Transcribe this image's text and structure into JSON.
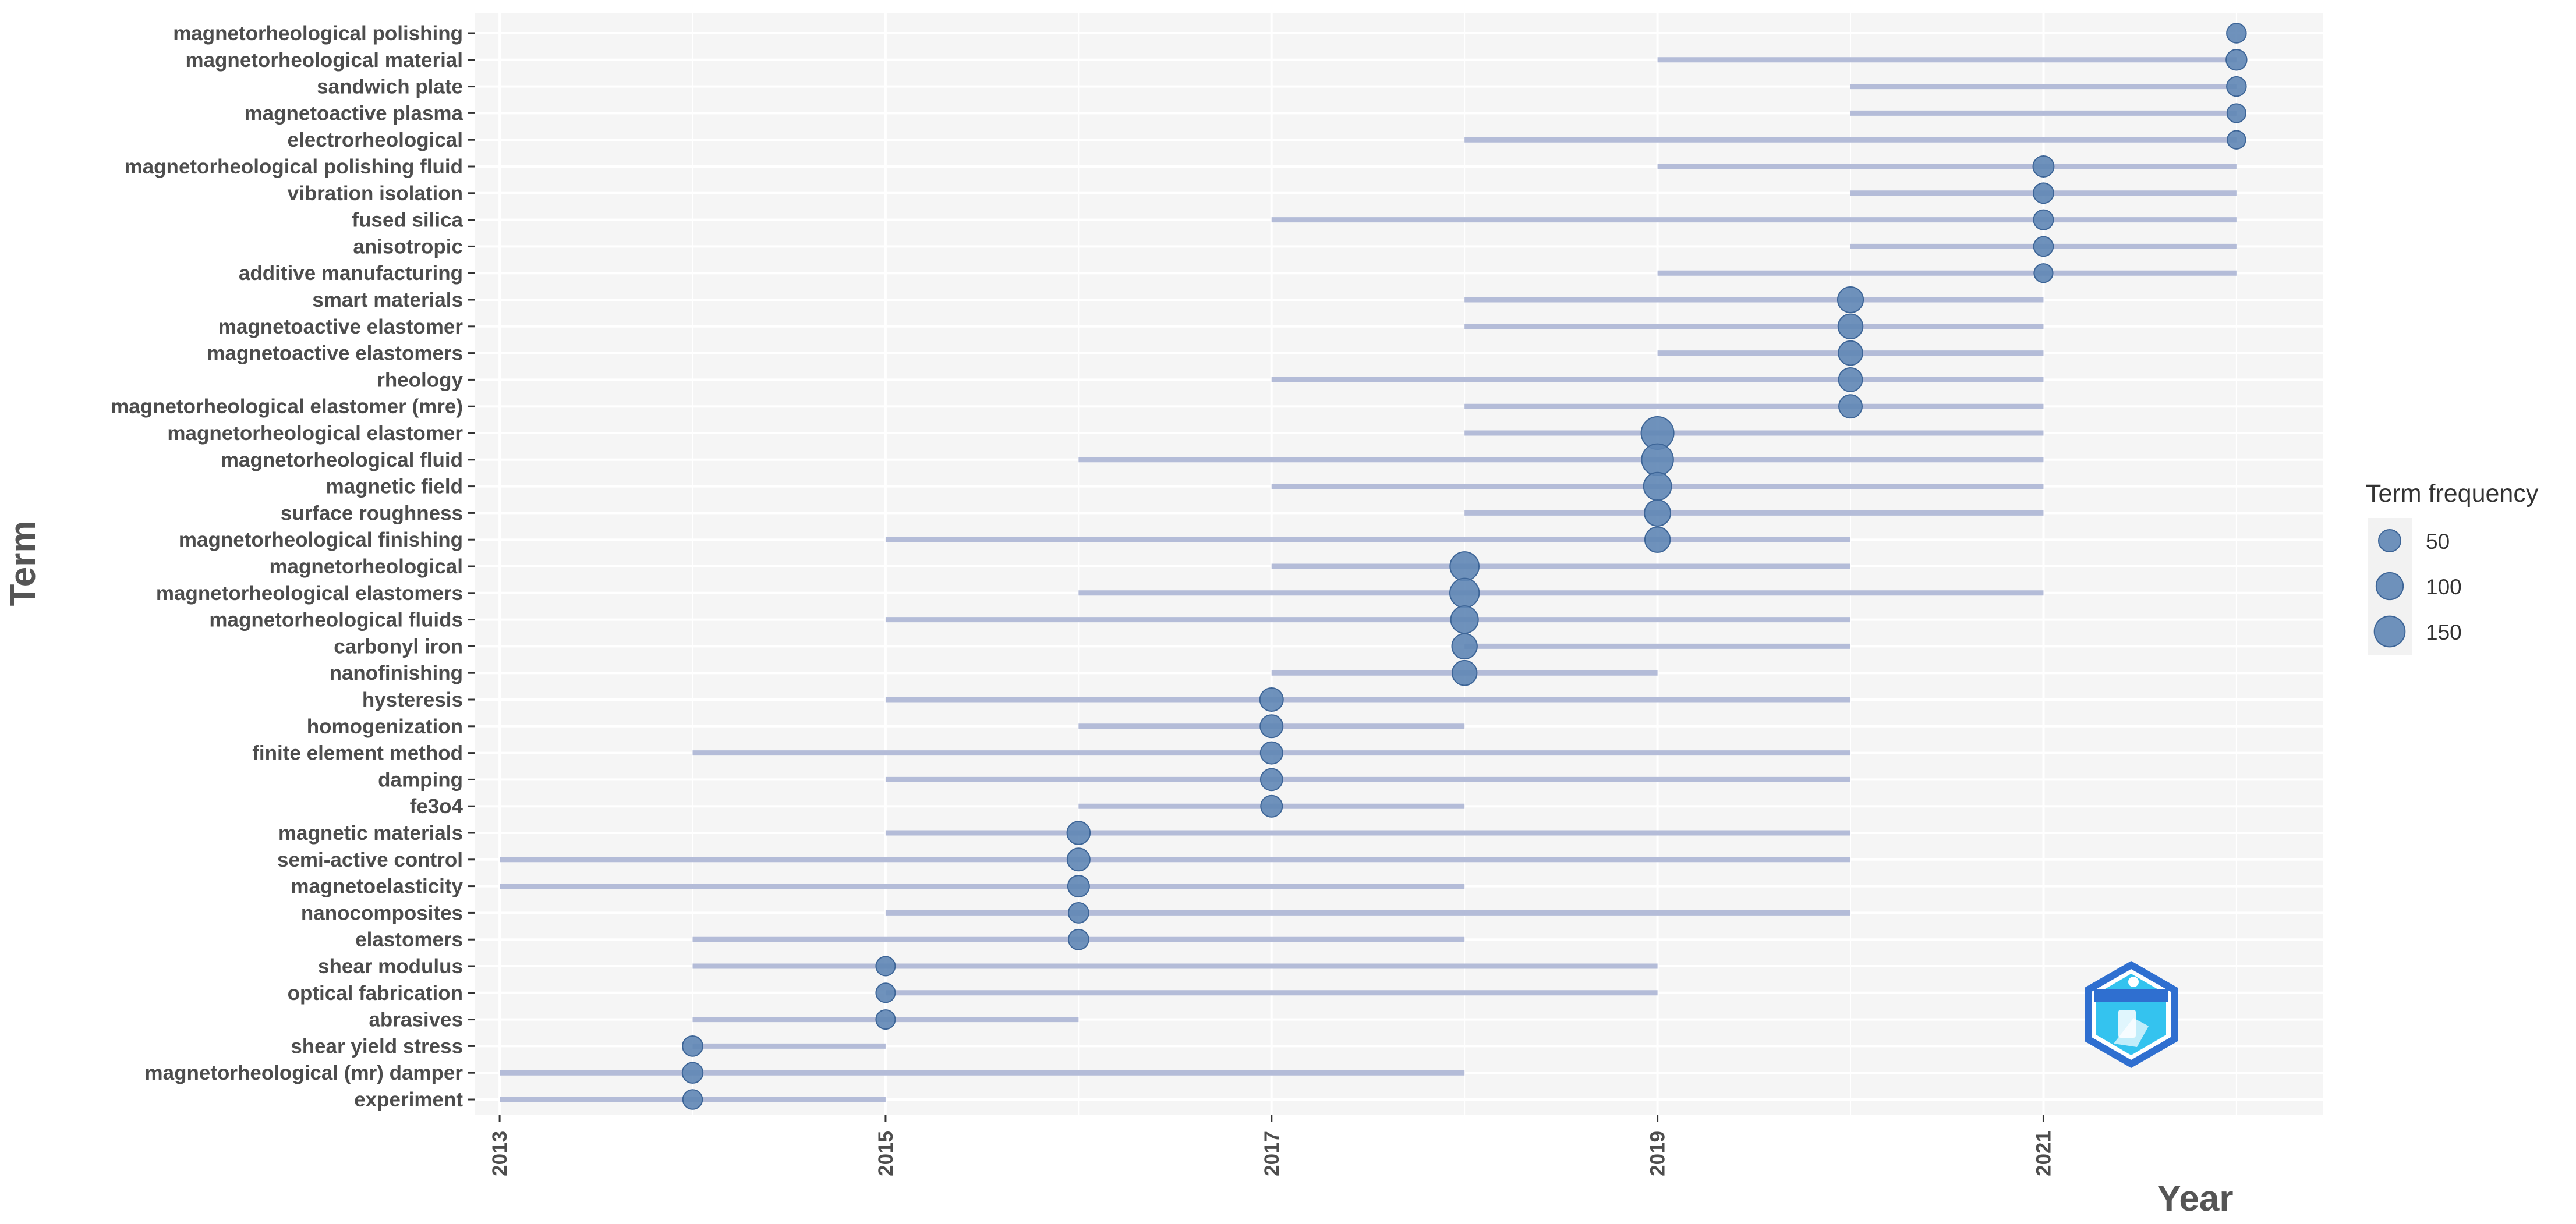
{
  "chart_data": {
    "type": "scatter",
    "title": "",
    "xlabel": "Year",
    "ylabel": "Term",
    "xlim": [
      2012.87,
      2022.45
    ],
    "x_ticks": [
      "2013",
      "2015",
      "2017",
      "2019",
      "2021"
    ],
    "legend": {
      "title": "Term frequency",
      "placement": "right",
      "items": [
        {
          "label": "50",
          "value": 50
        },
        {
          "label": "100",
          "value": 100
        },
        {
          "label": "150",
          "value": 150
        }
      ]
    },
    "terms": [
      {
        "term": "magnetorheological polishing",
        "start": 2022,
        "end": 2022,
        "year": 2022,
        "freq": 30
      },
      {
        "term": "magnetorheological material",
        "start": 2019,
        "end": 2022,
        "year": 2022,
        "freq": 38
      },
      {
        "term": "sandwich plate",
        "start": 2020,
        "end": 2022,
        "year": 2022,
        "freq": 30
      },
      {
        "term": "magnetoactive plasma",
        "start": 2020,
        "end": 2022,
        "year": 2022,
        "freq": 25
      },
      {
        "term": "electrorheological",
        "start": 2018,
        "end": 2022,
        "year": 2022,
        "freq": 22
      },
      {
        "term": "magnetorheological polishing fluid",
        "start": 2019,
        "end": 2022,
        "year": 2021,
        "freq": 40
      },
      {
        "term": "vibration isolation",
        "start": 2020,
        "end": 2022,
        "year": 2021,
        "freq": 35
      },
      {
        "term": "fused silica",
        "start": 2017,
        "end": 2022,
        "year": 2021,
        "freq": 32
      },
      {
        "term": "anisotropic",
        "start": 2020,
        "end": 2022,
        "year": 2021,
        "freq": 30
      },
      {
        "term": "additive manufacturing",
        "start": 2019,
        "end": 2022,
        "year": 2021,
        "freq": 25
      },
      {
        "term": "smart materials",
        "start": 2018,
        "end": 2021,
        "year": 2020,
        "freq": 85
      },
      {
        "term": "magnetoactive elastomer",
        "start": 2018,
        "end": 2021,
        "year": 2020,
        "freq": 75
      },
      {
        "term": "magnetoactive elastomers",
        "start": 2019,
        "end": 2021,
        "year": 2020,
        "freq": 70
      },
      {
        "term": "rheology",
        "start": 2017,
        "end": 2021,
        "year": 2020,
        "freq": 65
      },
      {
        "term": "magnetorheological elastomer (mre)",
        "start": 2018,
        "end": 2021,
        "year": 2020,
        "freq": 60
      },
      {
        "term": "magnetorheological elastomer",
        "start": 2018,
        "end": 2021,
        "year": 2019,
        "freq": 180
      },
      {
        "term": "magnetorheological fluid",
        "start": 2016,
        "end": 2021,
        "year": 2019,
        "freq": 165
      },
      {
        "term": "magnetic field",
        "start": 2017,
        "end": 2021,
        "year": 2019,
        "freq": 110
      },
      {
        "term": "surface roughness",
        "start": 2018,
        "end": 2021,
        "year": 2019,
        "freq": 90
      },
      {
        "term": "magnetorheological finishing",
        "start": 2015,
        "end": 2020,
        "year": 2019,
        "freq": 80
      },
      {
        "term": "magnetorheological",
        "start": 2017,
        "end": 2020,
        "year": 2018,
        "freq": 125
      },
      {
        "term": "magnetorheological elastomers",
        "start": 2016,
        "end": 2021,
        "year": 2018,
        "freq": 130
      },
      {
        "term": "magnetorheological fluids",
        "start": 2015,
        "end": 2020,
        "year": 2018,
        "freq": 105
      },
      {
        "term": "carbonyl iron",
        "start": 2018,
        "end": 2020,
        "year": 2018,
        "freq": 80
      },
      {
        "term": "nanofinishing",
        "start": 2017,
        "end": 2019,
        "year": 2018,
        "freq": 75
      },
      {
        "term": "hysteresis",
        "start": 2015,
        "end": 2020,
        "year": 2017,
        "freq": 60
      },
      {
        "term": "homogenization",
        "start": 2016,
        "end": 2018,
        "year": 2017,
        "freq": 55
      },
      {
        "term": "finite element method",
        "start": 2014,
        "end": 2020,
        "year": 2017,
        "freq": 50
      },
      {
        "term": "damping",
        "start": 2015,
        "end": 2020,
        "year": 2017,
        "freq": 48
      },
      {
        "term": "fe3o4",
        "start": 2016,
        "end": 2018,
        "year": 2017,
        "freq": 45
      },
      {
        "term": "magnetic materials",
        "start": 2015,
        "end": 2020,
        "year": 2016,
        "freq": 58
      },
      {
        "term": "semi-active control",
        "start": 2013,
        "end": 2020,
        "year": 2016,
        "freq": 55
      },
      {
        "term": "magnetoelasticity",
        "start": 2013,
        "end": 2018,
        "year": 2016,
        "freq": 45
      },
      {
        "term": "nanocomposites",
        "start": 2015,
        "end": 2020,
        "year": 2016,
        "freq": 35
      },
      {
        "term": "elastomers",
        "start": 2014,
        "end": 2018,
        "year": 2016,
        "freq": 35
      },
      {
        "term": "shear modulus",
        "start": 2014,
        "end": 2019,
        "year": 2015,
        "freq": 28
      },
      {
        "term": "optical fabrication",
        "start": 2015,
        "end": 2019,
        "year": 2015,
        "freq": 28
      },
      {
        "term": "abrasives",
        "start": 2014,
        "end": 2016,
        "year": 2015,
        "freq": 28
      },
      {
        "term": "shear yield stress",
        "start": 2014,
        "end": 2015,
        "year": 2014,
        "freq": 35
      },
      {
        "term": "magnetorheological (mr) damper",
        "start": 2013,
        "end": 2018,
        "year": 2014,
        "freq": 38
      },
      {
        "term": "experiment",
        "start": 2013,
        "end": 2015,
        "year": 2014,
        "freq": 30
      }
    ]
  },
  "colors": {
    "panel": "#f5f5f5",
    "gridline": "#ffffff",
    "segment": "#b4bcd8",
    "point": "#5f86b5",
    "point_stroke": "#3d6597",
    "text": "#4d4d4d",
    "logo_dark": "#2f6fd0",
    "logo_light": "#34c3ef"
  }
}
